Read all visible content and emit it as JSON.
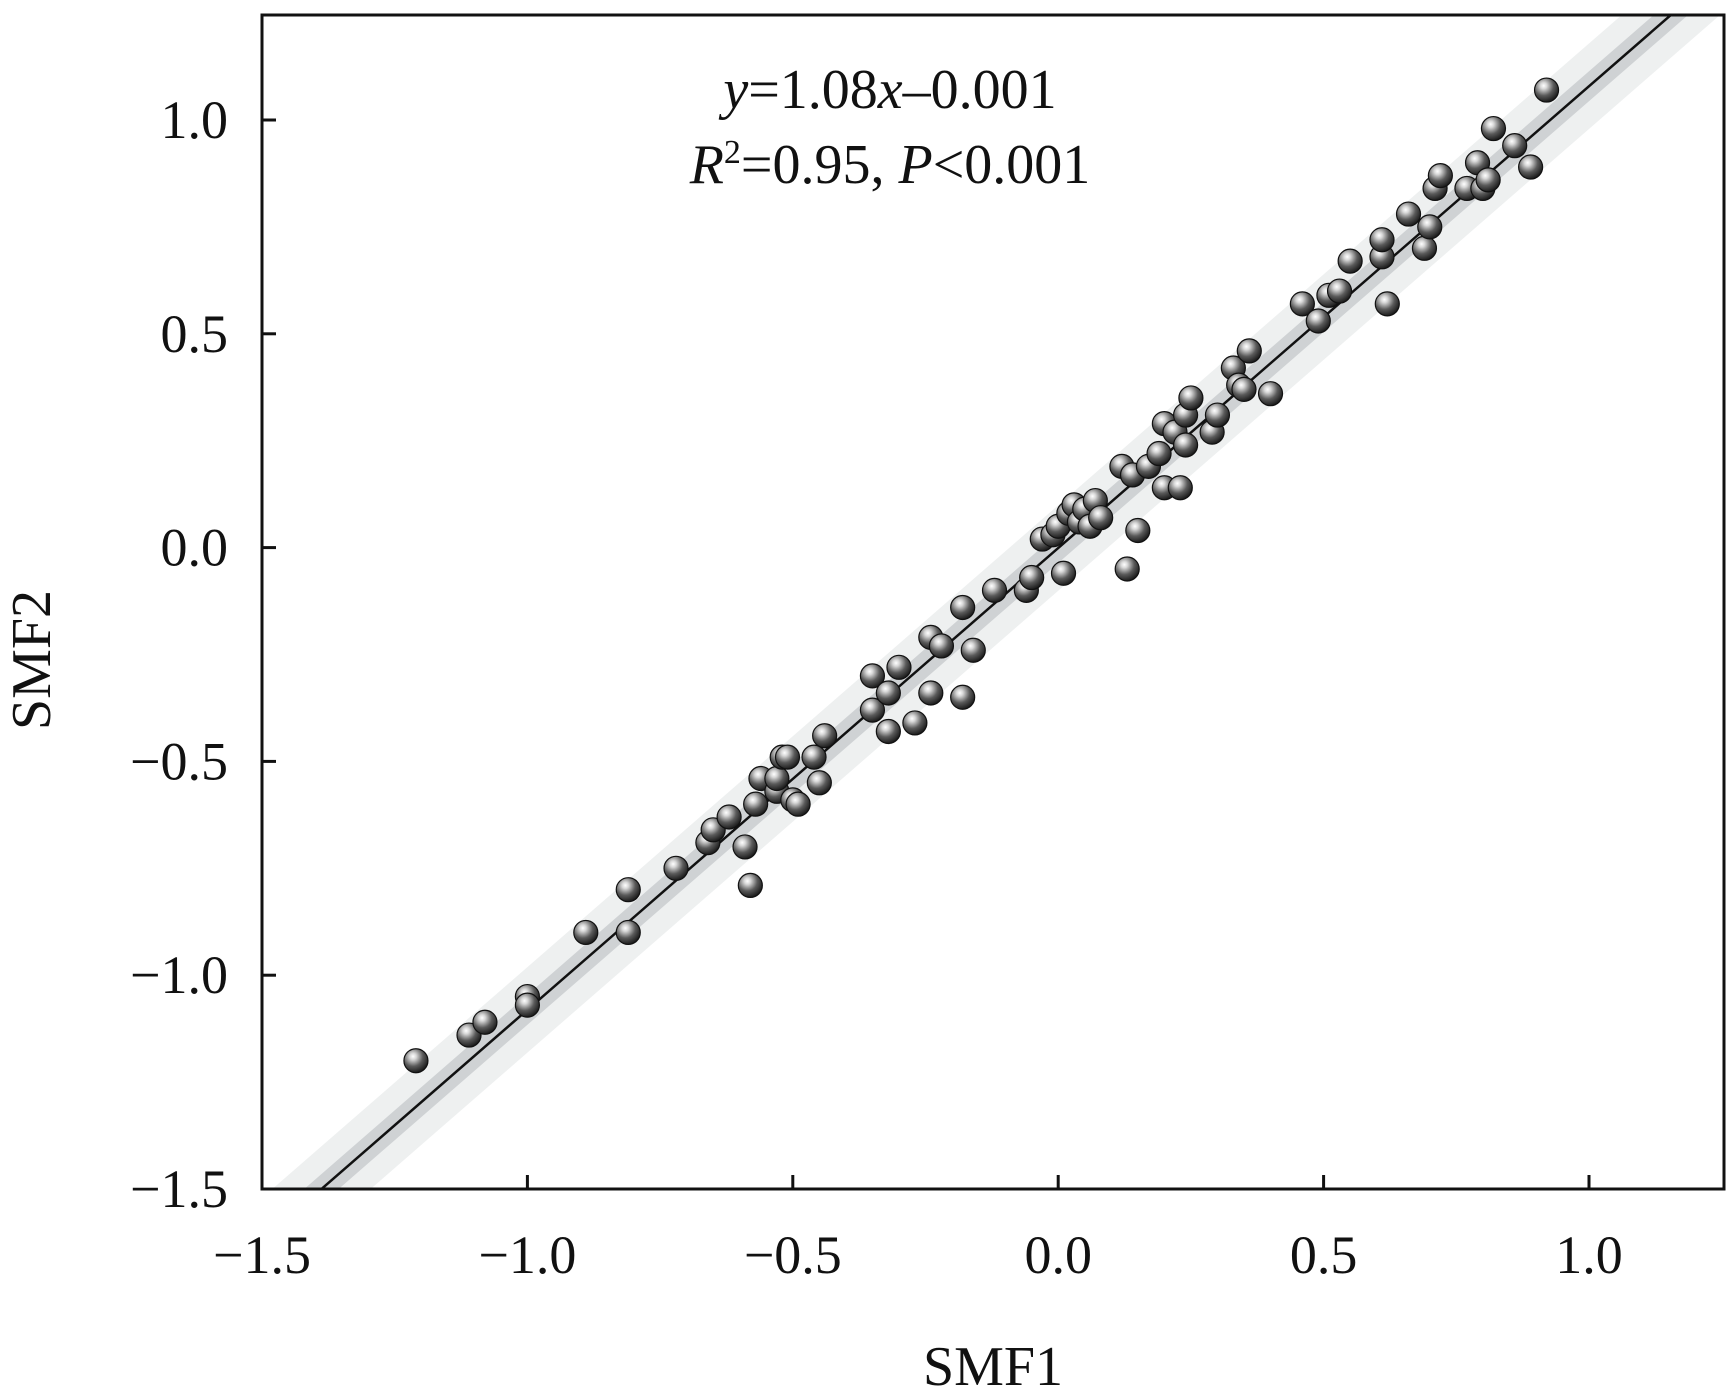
{
  "chart_data": {
    "type": "scatter",
    "xlabel": "SMF1",
    "ylabel": "SMF2",
    "xlim": [
      -1.5,
      1.25
    ],
    "ylim": [
      -1.5,
      1.25
    ],
    "xticks": [
      -1.5,
      -1.0,
      -0.5,
      0.0,
      0.5,
      1.0
    ],
    "yticks": [
      -1.5,
      -1.0,
      -0.5,
      0.0,
      0.5,
      1.0
    ],
    "xtick_labels": [
      "−1.5",
      "−1.0",
      "−0.5",
      "0.0",
      "0.5",
      "1.0"
    ],
    "ytick_labels": [
      "−1.5",
      "−1.0",
      "−0.5",
      "0.0",
      "0.5",
      "1.0"
    ],
    "annotation": {
      "line1": {
        "y_var": "y",
        "mid": "=1.08",
        "x_var": "x",
        "tail": "–0.001"
      },
      "line2": {
        "r_var": "R",
        "r_sup": "2",
        "mid": "=0.95, ",
        "p_var": "P",
        "tail": "<0.001"
      }
    },
    "fit": {
      "slope": 1.08,
      "intercept": -0.001,
      "band_inner": 0.035,
      "band_outer": 0.1
    },
    "grid": false,
    "legend": "none",
    "colors": {
      "axis": "#111111",
      "marker": "#3a3a3a",
      "fit": "#111111",
      "band_inner": "#cfd2d4",
      "band_outer": "#eef0f0"
    },
    "points": [
      [
        -1.21,
        -1.2
      ],
      [
        -1.11,
        -1.14
      ],
      [
        -1.08,
        -1.11
      ],
      [
        -1.0,
        -1.05
      ],
      [
        -1.0,
        -1.07
      ],
      [
        -0.89,
        -0.9
      ],
      [
        -0.81,
        -0.8
      ],
      [
        -0.81,
        -0.9
      ],
      [
        -0.72,
        -0.75
      ],
      [
        -0.66,
        -0.69
      ],
      [
        -0.65,
        -0.66
      ],
      [
        -0.62,
        -0.63
      ],
      [
        -0.59,
        -0.7
      ],
      [
        -0.58,
        -0.79
      ],
      [
        -0.57,
        -0.6
      ],
      [
        -0.56,
        -0.54
      ],
      [
        -0.53,
        -0.57
      ],
      [
        -0.53,
        -0.54
      ],
      [
        -0.52,
        -0.49
      ],
      [
        -0.51,
        -0.49
      ],
      [
        -0.5,
        -0.59
      ],
      [
        -0.49,
        -0.6
      ],
      [
        -0.46,
        -0.49
      ],
      [
        -0.45,
        -0.55
      ],
      [
        -0.44,
        -0.44
      ],
      [
        -0.35,
        -0.3
      ],
      [
        -0.35,
        -0.38
      ],
      [
        -0.32,
        -0.34
      ],
      [
        -0.32,
        -0.43
      ],
      [
        -0.3,
        -0.28
      ],
      [
        -0.27,
        -0.41
      ],
      [
        -0.24,
        -0.21
      ],
      [
        -0.24,
        -0.34
      ],
      [
        -0.22,
        -0.23
      ],
      [
        -0.18,
        -0.35
      ],
      [
        -0.18,
        -0.14
      ],
      [
        -0.16,
        -0.24
      ],
      [
        -0.12,
        -0.1
      ],
      [
        -0.06,
        -0.1
      ],
      [
        -0.05,
        -0.07
      ],
      [
        -0.03,
        0.02
      ],
      [
        -0.01,
        0.03
      ],
      [
        0.0,
        0.05
      ],
      [
        0.01,
        -0.06
      ],
      [
        0.02,
        0.08
      ],
      [
        0.03,
        0.1
      ],
      [
        0.04,
        0.06
      ],
      [
        0.05,
        0.09
      ],
      [
        0.06,
        0.05
      ],
      [
        0.07,
        0.11
      ],
      [
        0.08,
        0.07
      ],
      [
        0.12,
        0.19
      ],
      [
        0.13,
        -0.05
      ],
      [
        0.14,
        0.17
      ],
      [
        0.15,
        0.04
      ],
      [
        0.17,
        0.19
      ],
      [
        0.19,
        0.22
      ],
      [
        0.2,
        0.14
      ],
      [
        0.2,
        0.29
      ],
      [
        0.22,
        0.27
      ],
      [
        0.23,
        0.14
      ],
      [
        0.24,
        0.24
      ],
      [
        0.24,
        0.31
      ],
      [
        0.25,
        0.35
      ],
      [
        0.29,
        0.27
      ],
      [
        0.3,
        0.31
      ],
      [
        0.33,
        0.42
      ],
      [
        0.34,
        0.38
      ],
      [
        0.35,
        0.37
      ],
      [
        0.36,
        0.46
      ],
      [
        0.4,
        0.36
      ],
      [
        0.46,
        0.57
      ],
      [
        0.49,
        0.53
      ],
      [
        0.51,
        0.59
      ],
      [
        0.53,
        0.6
      ],
      [
        0.55,
        0.67
      ],
      [
        0.61,
        0.68
      ],
      [
        0.61,
        0.72
      ],
      [
        0.62,
        0.57
      ],
      [
        0.66,
        0.78
      ],
      [
        0.69,
        0.7
      ],
      [
        0.7,
        0.75
      ],
      [
        0.71,
        0.84
      ],
      [
        0.72,
        0.87
      ],
      [
        0.77,
        0.84
      ],
      [
        0.79,
        0.9
      ],
      [
        0.8,
        0.84
      ],
      [
        0.81,
        0.86
      ],
      [
        0.82,
        0.98
      ],
      [
        0.86,
        0.94
      ],
      [
        0.89,
        0.89
      ],
      [
        0.92,
        1.07
      ]
    ]
  }
}
